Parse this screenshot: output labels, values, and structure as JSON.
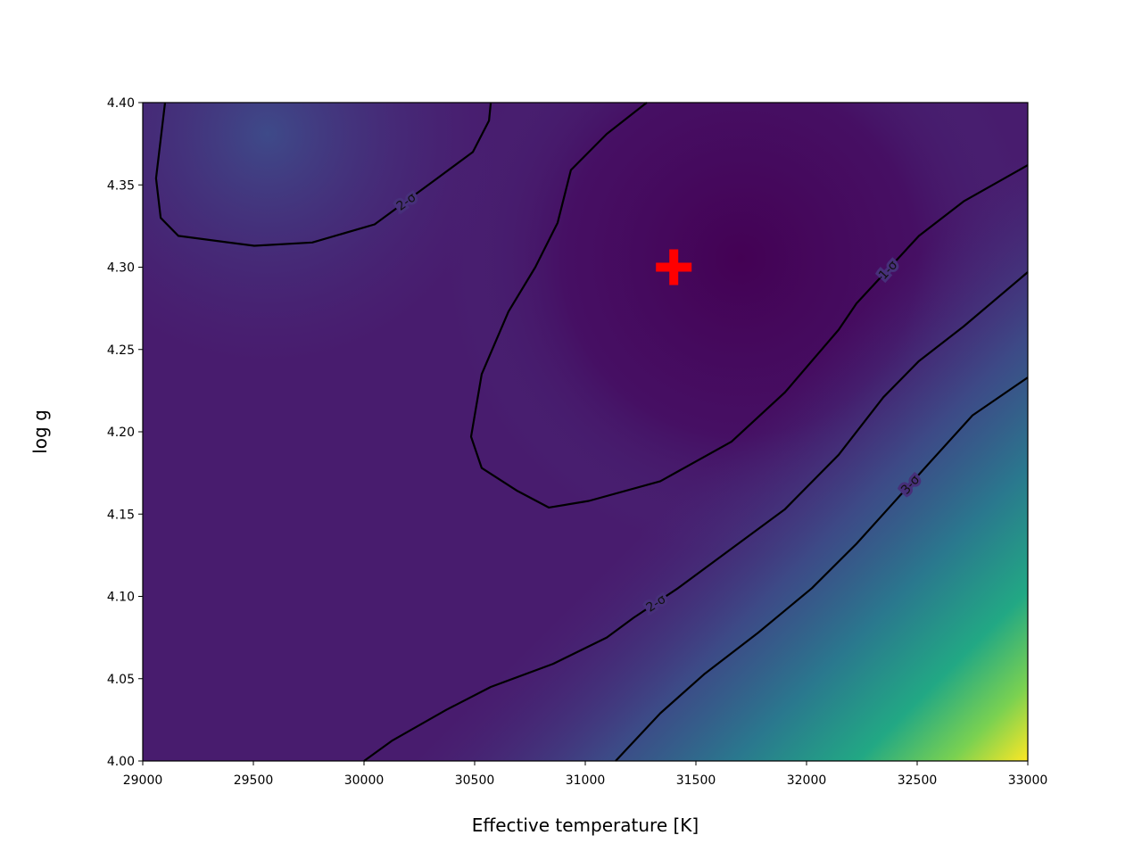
{
  "chart_data": {
    "type": "contour",
    "xlabel": "Effective temperature [K]",
    "ylabel": "log g",
    "xlim": [
      29000,
      33000
    ],
    "ylim": [
      4.0,
      4.4
    ],
    "xticks": [
      29000,
      29500,
      30000,
      30500,
      31000,
      31500,
      32000,
      32500,
      33000
    ],
    "yticks": [
      {
        "value": 4.0,
        "label": "4.00"
      },
      4.05,
      {
        "value": 4.1,
        "label": "4.10"
      },
      4.15,
      {
        "value": 4.2,
        "label": "4.20"
      },
      4.25,
      {
        "value": 4.3,
        "label": "4.30"
      },
      4.35,
      {
        "value": 4.4,
        "label": "4.40"
      }
    ],
    "line_color": "#000000",
    "contours": [
      {
        "label": "2-σ",
        "x": [
          29101,
          29060,
          29081,
          29161,
          29504,
          29766,
          30048,
          30331,
          30492,
          30565,
          30573
        ],
        "y": [
          4.4,
          4.354,
          4.33,
          4.319,
          4.313,
          4.315,
          4.326,
          4.354,
          4.37,
          4.389,
          4.4
        ]
      },
      {
        "label": "1-σ",
        "x": [
          31278,
          31097,
          30935,
          30875,
          30774,
          30653,
          30532,
          30484,
          30532,
          30694,
          30835,
          31016,
          31339,
          31661,
          31903,
          32145,
          32226,
          32508,
          32710,
          33000
        ],
        "y": [
          4.4,
          4.381,
          4.359,
          4.327,
          4.3,
          4.273,
          4.235,
          4.197,
          4.178,
          4.164,
          4.154,
          4.158,
          4.17,
          4.194,
          4.224,
          4.262,
          4.278,
          4.319,
          4.34,
          4.362
        ]
      },
      {
        "label": "2-σ",
        "x": [
          30000,
          30129,
          30371,
          30573,
          30855,
          31097,
          31218,
          31419,
          31661,
          31903,
          32145,
          32347,
          32508,
          32710,
          33000
        ],
        "y": [
          4.0,
          4.0125,
          4.031,
          4.045,
          4.059,
          4.075,
          4.087,
          4.105,
          4.129,
          4.153,
          4.186,
          4.221,
          4.243,
          4.264,
          4.297
        ]
      },
      {
        "label": "3-σ",
        "x": [
          31137,
          31339,
          31540,
          31782,
          32024,
          32226,
          32387,
          32548,
          32750,
          33000
        ],
        "y": [
          4.0,
          4.029,
          4.053,
          4.078,
          4.105,
          4.132,
          4.156,
          4.18,
          4.21,
          4.233
        ]
      }
    ],
    "marker": {
      "x": 31400,
      "y": 4.3,
      "color": "#ff0000"
    }
  }
}
